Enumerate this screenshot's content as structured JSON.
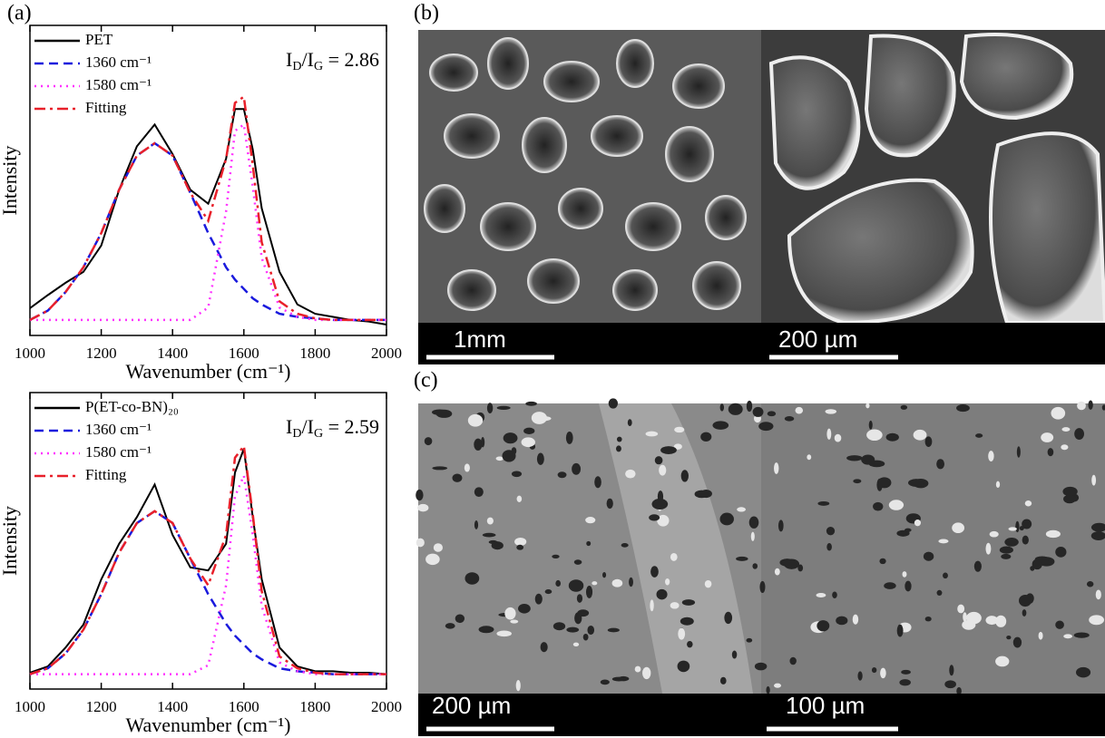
{
  "panel_labels": [
    "(a)",
    "(b)",
    "(c)"
  ],
  "images": {
    "b": {
      "scale_bars": [
        "1mm",
        "200 µm"
      ]
    },
    "c": {
      "scale_bars": [
        "200 µm",
        "100 µm"
      ]
    }
  },
  "chart_data": [
    {
      "type": "line",
      "xlabel": "Wavenumber (cm⁻¹)",
      "ylabel": "Intensity",
      "annotation": [
        {
          "text": "I"
        },
        {
          "text": "D",
          "sub": true
        },
        {
          "text": "/I"
        },
        {
          "text": "G",
          "sub": true
        },
        {
          "text": " = 2.86"
        }
      ],
      "x": [
        1000,
        1050,
        1100,
        1150,
        1200,
        1250,
        1300,
        1350,
        1400,
        1450,
        1500,
        1550,
        1575,
        1600,
        1625,
        1650,
        1700,
        1750,
        1800,
        1850,
        1900,
        1950,
        2000
      ],
      "xlim": [
        1000,
        2000
      ],
      "xticks": [
        1000,
        1200,
        1400,
        1600,
        1800,
        2000
      ],
      "ylim": [
        0,
        100
      ],
      "series": [
        {
          "name": "PET",
          "color": "#000000",
          "style": "solid",
          "values": [
            8.8,
            13,
            17,
            20.5,
            29,
            47,
            61,
            68,
            58.5,
            47,
            42.5,
            57,
            73,
            73,
            60,
            41,
            20.5,
            10,
            7,
            6,
            5,
            4.5,
            3.5
          ]
        },
        {
          "name": "1360 cm⁻¹",
          "color": "#1a1add",
          "style": "dashed",
          "values": [
            5,
            8,
            14,
            22,
            33,
            47,
            58,
            62,
            58,
            46,
            33,
            22,
            18,
            15,
            12,
            10,
            7,
            6,
            5.5,
            5,
            5,
            5,
            5
          ]
        },
        {
          "name": "1580 cm⁻¹",
          "color": "#ff33ff",
          "style": "dotted",
          "values": [
            5,
            5,
            5,
            5,
            5,
            5,
            5,
            5,
            5,
            5,
            9,
            40,
            66,
            68,
            48,
            25,
            9,
            6,
            5,
            5,
            5,
            5,
            5
          ]
        },
        {
          "name": "Fitting",
          "color": "#e8202a",
          "style": "dashdot",
          "values": [
            5,
            8,
            14,
            22,
            33,
            47,
            58,
            62,
            58,
            46,
            37,
            57,
            75,
            77,
            55,
            30,
            11,
            7,
            5.5,
            5,
            5,
            5,
            5
          ]
        }
      ]
    },
    {
      "type": "line",
      "xlabel": "Wavenumber (cm⁻¹)",
      "ylabel": "Intensity",
      "annotation": [
        {
          "text": "I"
        },
        {
          "text": "D",
          "sub": true
        },
        {
          "text": "/I"
        },
        {
          "text": "G",
          "sub": true
        },
        {
          "text": " = 2.59"
        }
      ],
      "x": [
        1000,
        1050,
        1100,
        1150,
        1200,
        1250,
        1300,
        1350,
        1400,
        1450,
        1500,
        1550,
        1575,
        1600,
        1625,
        1650,
        1700,
        1750,
        1800,
        1850,
        1900,
        1950,
        2000
      ],
      "xlim": [
        1000,
        2000
      ],
      "xticks": [
        1000,
        1200,
        1400,
        1600,
        1800,
        2000
      ],
      "ylim": [
        0,
        100
      ],
      "series": [
        {
          "name": "P(ET-co-BN)₂₀",
          "color": "#000000",
          "style": "solid",
          "values": [
            5.5,
            7.6,
            14,
            21.7,
            37,
            49,
            58,
            69,
            52,
            41,
            40,
            49,
            73,
            81,
            58,
            37,
            14,
            7.6,
            6,
            6,
            5.5,
            5.5,
            5
          ]
        },
        {
          "name": "1360 cm⁻¹",
          "color": "#1a1add",
          "style": "dashed",
          "values": [
            5,
            7,
            12,
            20,
            32,
            46,
            56,
            60,
            56,
            44,
            32,
            22,
            18,
            15,
            12,
            10,
            7,
            6,
            5.5,
            5,
            5,
            5,
            5
          ]
        },
        {
          "name": "1580 cm⁻¹",
          "color": "#ff33ff",
          "style": "dotted",
          "values": [
            5,
            5,
            5,
            5,
            5,
            5,
            5,
            5,
            5,
            5,
            8,
            35,
            65,
            72,
            52,
            28,
            9,
            6,
            5,
            5,
            5,
            5,
            5
          ]
        },
        {
          "name": "Fitting",
          "color": "#e8202a",
          "style": "dashdot",
          "values": [
            5,
            7,
            12,
            20,
            32,
            46,
            56,
            60,
            56,
            44,
            35,
            52,
            78,
            82,
            59,
            33,
            11,
            7,
            5.5,
            5,
            5,
            5,
            5
          ]
        }
      ]
    }
  ]
}
